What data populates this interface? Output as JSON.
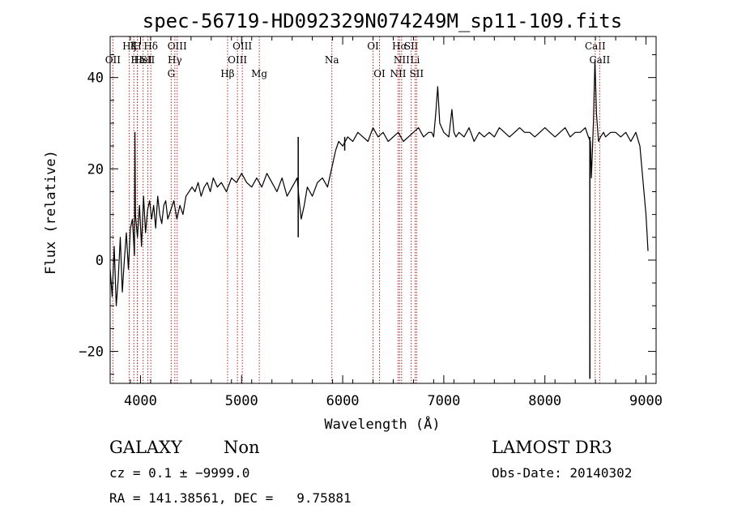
{
  "chart_data": {
    "type": "line",
    "title": "spec-56719-HD092329N074249M_sp11-109.fits",
    "xlabel": "Wavelength (Å)",
    "ylabel": "Flux (relative)",
    "xlim": [
      3700,
      9100
    ],
    "ylim": [
      -27,
      49
    ],
    "x_ticks": [
      4000,
      5000,
      6000,
      7000,
      8000,
      9000
    ],
    "y_ticks": [
      -20,
      0,
      20,
      40
    ],
    "grid": false,
    "line_color": "#000000",
    "marker_color": "#b22222",
    "spectrum": {
      "x": [
        3700,
        3720,
        3740,
        3760,
        3780,
        3800,
        3820,
        3840,
        3860,
        3880,
        3900,
        3920,
        3940,
        3945,
        3950,
        3970,
        3990,
        4010,
        4030,
        4050,
        4070,
        4090,
        4110,
        4130,
        4150,
        4170,
        4190,
        4210,
        4230,
        4250,
        4270,
        4300,
        4330,
        4360,
        4390,
        4420,
        4450,
        4480,
        4510,
        4540,
        4570,
        4600,
        4630,
        4660,
        4690,
        4720,
        4760,
        4800,
        4850,
        4900,
        4950,
        5000,
        5050,
        5100,
        5150,
        5200,
        5250,
        5300,
        5350,
        5400,
        5450,
        5500,
        5550,
        5570,
        5590,
        5620,
        5650,
        5700,
        5750,
        5800,
        5850,
        5880,
        5900,
        5930,
        5960,
        6000,
        6050,
        6100,
        6150,
        6200,
        6250,
        6300,
        6350,
        6400,
        6450,
        6500,
        6550,
        6600,
        6650,
        6700,
        6750,
        6800,
        6850,
        6880,
        6900,
        6920,
        6940,
        6960,
        6980,
        7000,
        7050,
        7080,
        7100,
        7120,
        7150,
        7200,
        7250,
        7300,
        7350,
        7400,
        7450,
        7500,
        7550,
        7600,
        7650,
        7700,
        7750,
        7800,
        7850,
        7900,
        7950,
        8000,
        8050,
        8100,
        8150,
        8200,
        8250,
        8300,
        8350,
        8400,
        8430,
        8450,
        8460,
        8480,
        8495,
        8510,
        8530,
        8550,
        8580,
        8600,
        8650,
        8700,
        8750,
        8800,
        8850,
        8900,
        8940,
        8960,
        8980,
        9000,
        9010,
        9020
      ],
      "y": [
        -2,
        -8,
        3,
        -10,
        -4,
        5,
        -7,
        0,
        6,
        -2,
        7,
        9,
        1,
        28,
        10,
        5,
        12,
        3,
        14,
        6,
        11,
        13,
        9,
        12,
        7,
        14,
        10,
        8,
        12,
        13,
        9,
        11,
        13,
        9,
        12,
        10,
        14,
        15,
        16,
        15,
        17,
        14,
        16,
        17,
        15,
        18,
        16,
        17,
        15,
        18,
        17,
        19,
        17,
        16,
        18,
        16,
        19,
        17,
        15,
        18,
        14,
        16,
        18,
        13,
        9,
        12,
        16,
        14,
        17,
        18,
        16,
        19,
        21,
        24,
        26,
        25,
        27,
        26,
        28,
        27,
        26,
        29,
        27,
        28,
        26,
        27,
        28,
        26,
        27,
        28,
        29,
        27,
        28,
        28,
        27,
        32,
        38,
        30,
        29,
        28,
        27,
        33,
        28,
        27,
        28,
        27,
        29,
        26,
        28,
        27,
        28,
        27,
        29,
        28,
        27,
        28,
        29,
        28,
        28,
        27,
        28,
        29,
        28,
        27,
        28,
        29,
        27,
        28,
        28,
        29,
        27,
        26,
        18,
        30,
        44,
        32,
        26,
        27,
        28,
        27,
        28,
        28,
        27,
        28,
        26,
        28,
        25,
        20,
        15,
        10,
        6,
        2
      ],
      "dropouts": [
        {
          "x": 8445,
          "y": -26
        },
        {
          "x": 6020,
          "y": 24
        },
        {
          "x": 5560,
          "y": 5
        }
      ]
    },
    "lines": [
      {
        "x": 3934,
        "label": "K",
        "row": 0
      },
      {
        "x": 3969,
        "label": "H",
        "row": 0
      },
      {
        "x": 3727,
        "label": "OII",
        "row": 1
      },
      {
        "x": 3889,
        "label": "Hζ",
        "row": 0
      },
      {
        "x": 3970,
        "label": "Hε",
        "row": 1
      },
      {
        "x": 4026,
        "label": "HeI",
        "row": 1
      },
      {
        "x": 4102,
        "label": "Hδ",
        "row": 0
      },
      {
        "x": 4072,
        "label": "SII",
        "row": 1
      },
      {
        "x": 4304,
        "label": "G",
        "row": 2
      },
      {
        "x": 4340,
        "label": "Hγ",
        "row": 1
      },
      {
        "x": 4363,
        "label": "OIII",
        "row": 0
      },
      {
        "x": 4861,
        "label": "Hβ",
        "row": 2
      },
      {
        "x": 4959,
        "label": "OIII",
        "row": 1
      },
      {
        "x": 5007,
        "label": "OIII",
        "row": 0
      },
      {
        "x": 5175,
        "label": "Mg",
        "row": 2
      },
      {
        "x": 5893,
        "label": "Na",
        "row": 1
      },
      {
        "x": 6300,
        "label": "OI",
        "row": 0
      },
      {
        "x": 6364,
        "label": "OI",
        "row": 2
      },
      {
        "x": 6548,
        "label": "NII",
        "row": 2
      },
      {
        "x": 6563,
        "label": "Hα",
        "row": 0
      },
      {
        "x": 6583,
        "label": "NII",
        "row": 1
      },
      {
        "x": 6678,
        "label": "SII",
        "row": 0
      },
      {
        "x": 6716,
        "label": "Li",
        "row": 1
      },
      {
        "x": 6731,
        "label": "SII",
        "row": 2
      },
      {
        "x": 8498,
        "label": "CaII",
        "row": 0
      },
      {
        "x": 8542,
        "label": "CaII",
        "row": 1
      }
    ]
  },
  "info": {
    "class": "GALAXY",
    "subclass": "Non",
    "survey": "LAMOST DR3",
    "cz": "cz = 0.1 ± −9999.0",
    "obs_date": "Obs-Date: 20140302",
    "radec": "RA = 141.38561, DEC =   9.75881"
  }
}
